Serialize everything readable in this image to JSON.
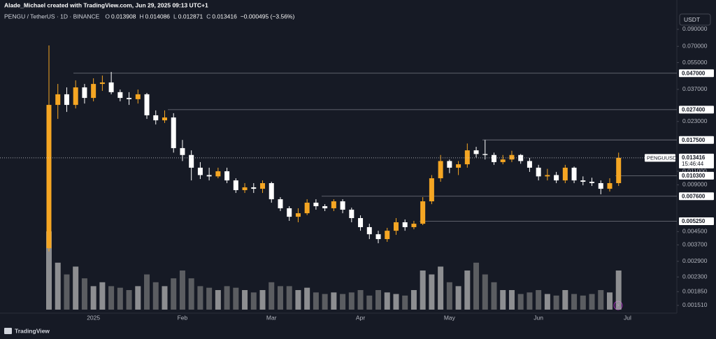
{
  "header": {
    "credit": "Alade_Michael created with TradingView.com, Jun 29, 2025 09:13 UTC+1",
    "symbol": "PENGU / TetherUS · 1D · BINANCE",
    "ohlc": [
      {
        "label": "O",
        "value": "0.013908"
      },
      {
        "label": "H",
        "value": "0.014086"
      },
      {
        "label": "L",
        "value": "0.012871"
      },
      {
        "label": "C",
        "value": "0.013416"
      }
    ],
    "change": "−0.000495 (−3.56%)",
    "currency": "USDT"
  },
  "footer": {
    "brand": "TradingView"
  },
  "chart_data": {
    "type": "candlestick",
    "log_scale": true,
    "grid": false,
    "up_color": "#f5a623",
    "down_color": "#ffffff",
    "categories": [
      null,
      null,
      null,
      null,
      null,
      "2025",
      null,
      null,
      null,
      null,
      null,
      null,
      null,
      null,
      null,
      "Feb",
      null,
      null,
      null,
      null,
      null,
      null,
      null,
      null,
      null,
      "Mar",
      null,
      null,
      null,
      null,
      null,
      null,
      null,
      null,
      null,
      "Apr",
      null,
      null,
      null,
      null,
      null,
      null,
      null,
      null,
      null,
      "May",
      null,
      null,
      null,
      null,
      null,
      null,
      null,
      null,
      null,
      "Jun",
      null,
      null,
      null,
      null,
      null,
      null,
      null,
      null,
      null,
      "Jul"
    ],
    "open": [
      0.00352,
      0.0294,
      0.0344,
      0.0294,
      0.0381,
      0.0326,
      0.0401,
      0.041,
      0.0355,
      0.0326,
      0.032,
      0.0344,
      0.0252,
      0.0234,
      0.0244,
      0.0155,
      0.014,
      0.0116,
      0.0104,
      0.0102,
      0.011,
      0.00961,
      0.00832,
      0.00867,
      0.00849,
      0.00923,
      0.00727,
      0.00636,
      0.00561,
      0.00591,
      0.00691,
      0.00656,
      0.00636,
      0.00705,
      0.00623,
      0.0055,
      0.00481,
      0.00433,
      0.00403,
      0.00456,
      0.00517,
      0.00481,
      0.00506,
      0.00705,
      0.00992,
      0.0128,
      0.0116,
      0.0122,
      0.015,
      0.0142,
      0.014,
      0.0126,
      0.0131,
      0.014,
      0.0128,
      0.0116,
      0.0102,
      0.0104,
      0.00961,
      0.0116,
      0.00961,
      0.00942,
      0.00923,
      0.00849,
      0.00923,
      null
    ],
    "high": [
      0.0709,
      0.0401,
      0.0381,
      0.0423,
      0.0401,
      0.0436,
      0.0454,
      0.0479,
      0.0369,
      0.0355,
      0.0369,
      0.0351,
      0.0271,
      0.0271,
      0.026,
      0.0175,
      0.015,
      0.0126,
      0.0116,
      0.0116,
      0.0116,
      0.00992,
      0.00923,
      0.00923,
      0.00961,
      0.00942,
      0.0075,
      0.00656,
      0.00636,
      0.00727,
      0.00727,
      0.00676,
      0.00727,
      0.00727,
      0.00642,
      0.00573,
      0.00506,
      0.00456,
      0.00476,
      0.0055,
      0.00539,
      0.00528,
      0.0075,
      0.0104,
      0.014,
      0.0131,
      0.0128,
      0.0166,
      0.0158,
      0.0175,
      0.0145,
      0.014,
      0.0149,
      0.0142,
      0.0134,
      0.0121,
      0.0114,
      0.0109,
      0.0121,
      0.0118,
      0.0102,
      0.01,
      0.00961,
      0.00992,
      0.0145,
      null
    ],
    "low": [
      0.00335,
      0.0239,
      0.0265,
      0.0279,
      0.03,
      0.031,
      0.0362,
      0.0344,
      0.031,
      0.0294,
      0.03,
      0.0239,
      0.022,
      0.0225,
      0.0145,
      0.0128,
      0.00961,
      0.00981,
      0.00961,
      0.00992,
      0.00923,
      0.00798,
      0.00798,
      0.00798,
      0.00798,
      0.00691,
      0.0061,
      0.00528,
      0.00517,
      0.00575,
      0.00623,
      0.0061,
      0.0061,
      0.00591,
      0.00517,
      0.00456,
      0.00403,
      0.00379,
      0.00387,
      0.00429,
      0.00456,
      0.00466,
      0.00496,
      0.00676,
      0.00942,
      0.0107,
      0.0104,
      0.0116,
      0.0135,
      0.0131,
      0.0121,
      0.0122,
      0.0126,
      0.0123,
      0.0109,
      0.00961,
      0.00961,
      0.00923,
      0.00923,
      0.00923,
      0.00894,
      0.00885,
      0.00782,
      0.00815,
      0.00885,
      null
    ],
    "close": [
      0.0294,
      0.0344,
      0.0294,
      0.0381,
      0.0326,
      0.0401,
      0.041,
      0.0355,
      0.0326,
      0.032,
      0.0344,
      0.0252,
      0.0234,
      0.0244,
      0.0155,
      0.014,
      0.0116,
      0.0104,
      0.0102,
      0.011,
      0.00961,
      0.00832,
      0.00867,
      0.00849,
      0.00923,
      0.00727,
      0.00636,
      0.00561,
      0.00591,
      0.00691,
      0.00656,
      0.00636,
      0.00705,
      0.00623,
      0.0055,
      0.00481,
      0.00433,
      0.00403,
      0.00456,
      0.00517,
      0.00481,
      0.00506,
      0.00705,
      0.00992,
      0.0128,
      0.0116,
      0.0122,
      0.015,
      0.0142,
      0.014,
      0.0126,
      0.0131,
      0.014,
      0.0128,
      0.0116,
      0.0102,
      0.0104,
      0.00961,
      0.0116,
      0.00961,
      0.00942,
      0.00923,
      0.00849,
      0.00923,
      0.013416,
      null
    ],
    "volume": [
      100,
      60,
      45,
      55,
      40,
      30,
      35,
      30,
      28,
      25,
      30,
      45,
      35,
      30,
      40,
      50,
      40,
      30,
      28,
      25,
      30,
      28,
      25,
      22,
      25,
      35,
      30,
      30,
      25,
      28,
      22,
      20,
      22,
      20,
      22,
      25,
      18,
      25,
      22,
      20,
      18,
      25,
      50,
      45,
      55,
      35,
      30,
      50,
      60,
      45,
      35,
      25,
      25,
      20,
      22,
      25,
      20,
      18,
      25,
      20,
      18,
      20,
      25,
      22,
      50,
      null
    ],
    "ylim": [
      0.00136,
      0.113
    ],
    "yticks": [
      {
        "value": 0.09,
        "label": "0.090000"
      },
      {
        "value": 0.07,
        "label": "0.070000"
      },
      {
        "value": 0.055,
        "label": "0.055000"
      },
      {
        "value": 0.037,
        "label": "0.037000"
      },
      {
        "value": 0.023,
        "label": "0.023000"
      },
      {
        "value": 0.011,
        "label": "0.011000"
      },
      {
        "value": 0.009,
        "label": "0.009000"
      },
      {
        "value": 0.0045,
        "label": "0.004500"
      },
      {
        "value": 0.0037,
        "label": "0.003700"
      },
      {
        "value": 0.0029,
        "label": "0.002900"
      },
      {
        "value": 0.0023,
        "label": "0.002300"
      },
      {
        "value": 0.00185,
        "label": "0.001850"
      },
      {
        "value": 0.00151,
        "label": "0.001510"
      }
    ],
    "levels": [
      {
        "value": 0.047,
        "label": "0.047000"
      },
      {
        "value": 0.0274,
        "label": "0.027400"
      },
      {
        "value": 0.0175,
        "label": "0.017500"
      },
      {
        "value": 0.0103,
        "label": "0.010300"
      },
      {
        "value": 0.0076,
        "label": "0.007600"
      },
      {
        "value": 0.00525,
        "label": "0.005250"
      }
    ],
    "last_price": {
      "value": 0.013416,
      "label": "0.013416",
      "symbol": "PENGUUSDT",
      "countdown": "15:46:44"
    }
  }
}
